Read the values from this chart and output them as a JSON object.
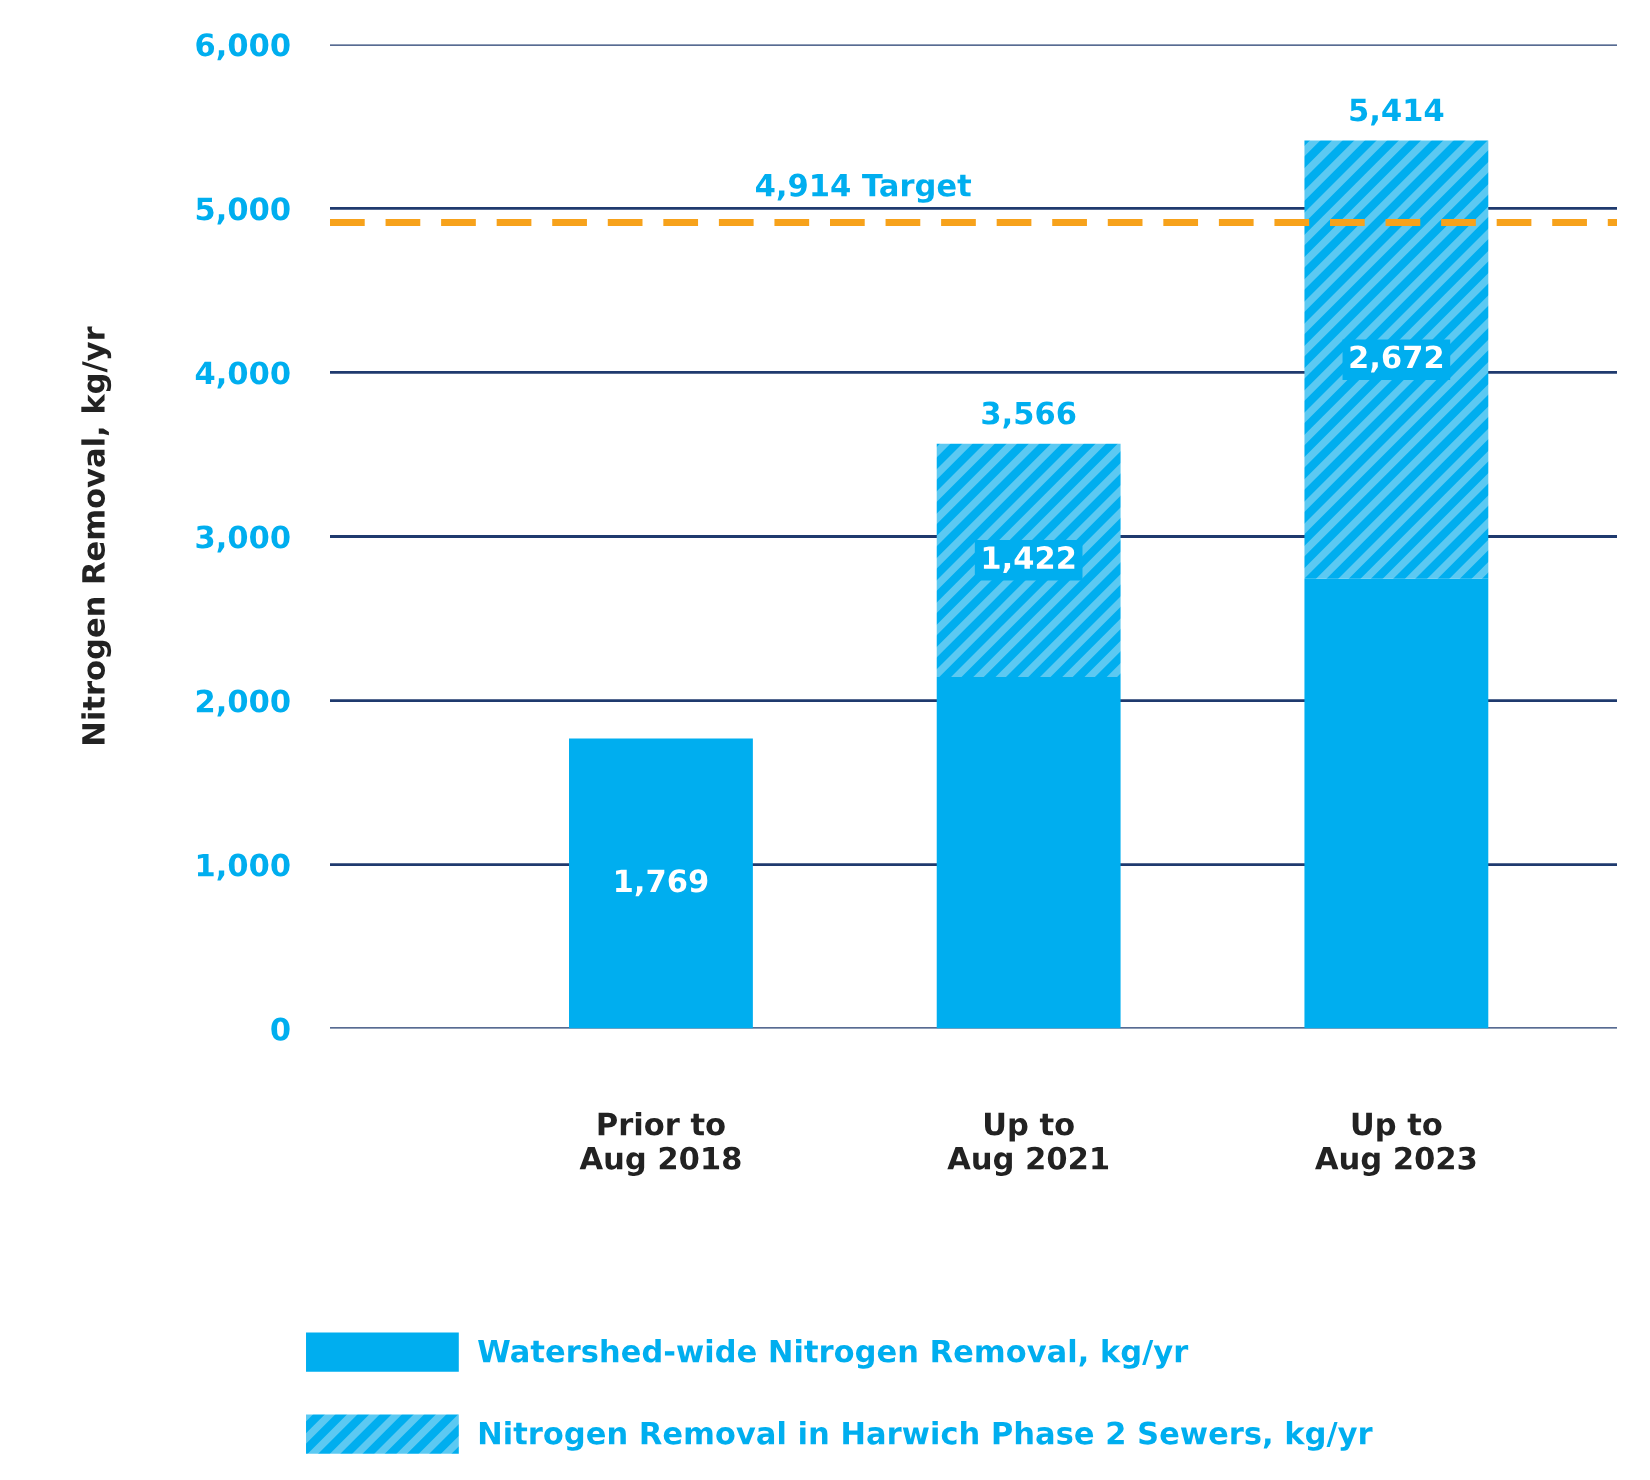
{
  "chart_data": {
    "type": "bar",
    "stacked": true,
    "ylabel": "Nitrogen Removal, kg/yr",
    "categories": [
      "Prior to\nAug 2018",
      "Up to\nAug 2021",
      "Up to\nAug 2023"
    ],
    "series": [
      {
        "name": "Watershed-wide Nitrogen Removal, kg/yr",
        "color": "#00aeef",
        "values": [
          1769,
          2144,
          2742
        ],
        "value_labels": [
          "1,769",
          null,
          null
        ]
      },
      {
        "name": "Nitrogen Removal in Harwich Phase 2 Sewers, kg/yr",
        "color": "#5cc9f2",
        "values": [
          null,
          1422,
          2672
        ],
        "value_labels": [
          null,
          "1,422",
          "2,672"
        ]
      }
    ],
    "totals": [
      null,
      "3,566",
      "5,414"
    ],
    "ylim": [
      0,
      6000
    ],
    "yticks": [
      {
        "value": 0,
        "label": "0"
      },
      {
        "value": 1000,
        "label": "1,000"
      },
      {
        "value": 2000,
        "label": "2,000"
      },
      {
        "value": 3000,
        "label": "3,000"
      },
      {
        "value": 4000,
        "label": "4,000"
      },
      {
        "value": 5000,
        "label": "5,000"
      },
      {
        "value": 6000,
        "label": "6,000"
      }
    ],
    "grid": "y",
    "legend": "bottom",
    "ref_lines": [
      {
        "axis": "y",
        "value": 4914,
        "label": "4,914 Target",
        "color": "#f7a21b",
        "line_style": "dashed"
      }
    ]
  }
}
